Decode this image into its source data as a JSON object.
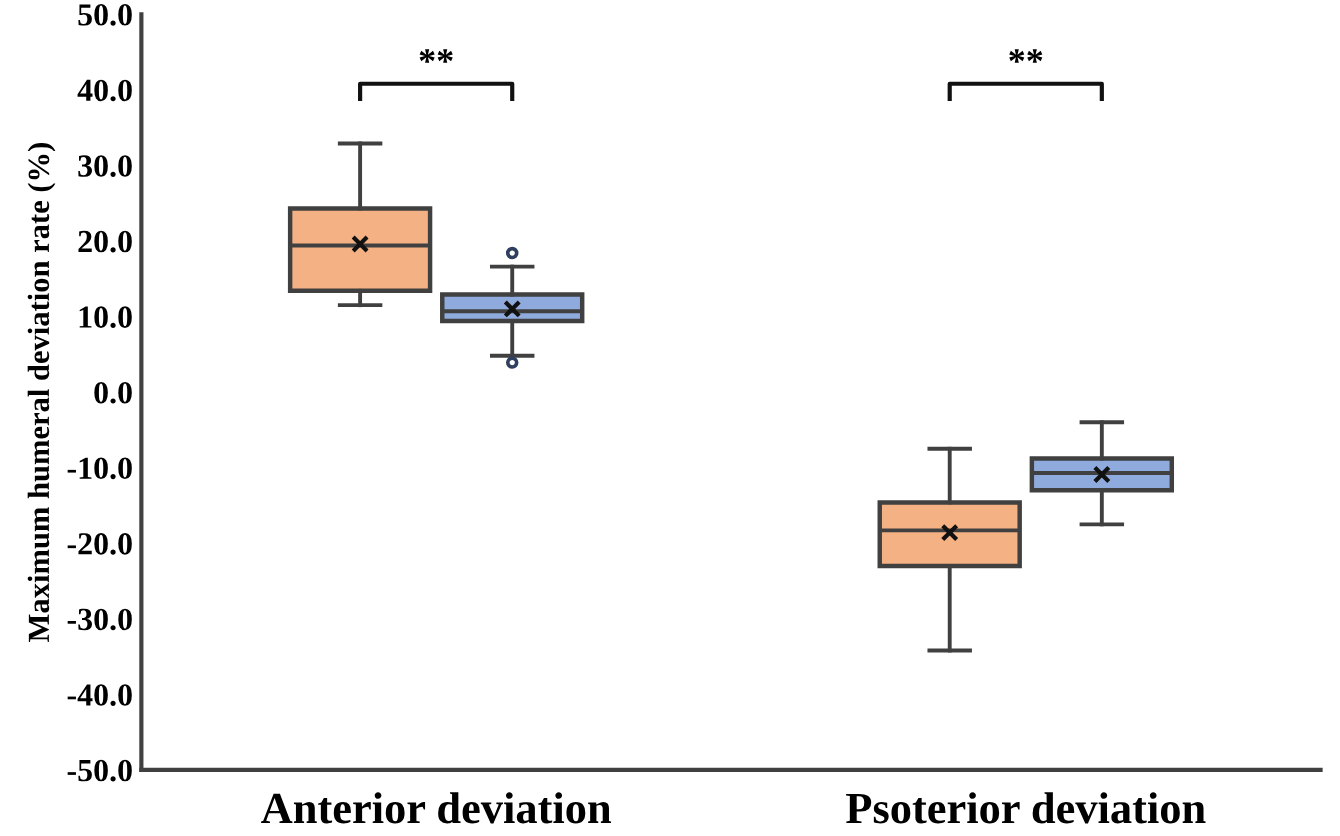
{
  "chart_data": {
    "type": "box",
    "ylabel": "Maximum humeral deviation rate (%)",
    "categories": [
      "Anterior deviation",
      "Psoterior deviation"
    ],
    "series": [
      {
        "color": "#f4b183",
        "boxes": [
          {
            "low": 11.5,
            "q1": 13.4,
            "median": 19.4,
            "q3": 24.3,
            "high": 32.9,
            "mean": 19.6
          },
          {
            "low": -34.2,
            "q1": -23.0,
            "median": -18.3,
            "q3": -14.6,
            "high": -7.5,
            "mean": -18.6
          }
        ]
      },
      {
        "color": "#8faadc",
        "boxes": [
          {
            "low": 4.8,
            "q1": 9.4,
            "median": 10.7,
            "q3": 12.9,
            "high": 16.6,
            "mean": 11.0,
            "outliers": [
              18.4,
              3.9
            ]
          },
          {
            "low": -17.5,
            "q1": -13.0,
            "median": -10.7,
            "q3": -8.8,
            "high": -4.0,
            "mean": -10.9
          }
        ]
      }
    ],
    "ylim": [
      -50,
      50
    ],
    "yticks": [
      {
        "value": -50,
        "label": "-50.0"
      },
      {
        "value": -40,
        "label": "-40.0"
      },
      {
        "value": -30,
        "label": "-30.0"
      },
      {
        "value": -20,
        "label": "-20.0"
      },
      {
        "value": -10,
        "label": "-10.0"
      },
      {
        "value": 0,
        "label": "0.0"
      },
      {
        "value": 10,
        "label": "10.0"
      },
      {
        "value": 20,
        "label": "20.0"
      },
      {
        "value": 30,
        "label": "30.0"
      },
      {
        "value": 40,
        "label": "40.0"
      },
      {
        "value": 50,
        "label": "50.0"
      }
    ],
    "annotations": [
      "**",
      "**"
    ]
  }
}
